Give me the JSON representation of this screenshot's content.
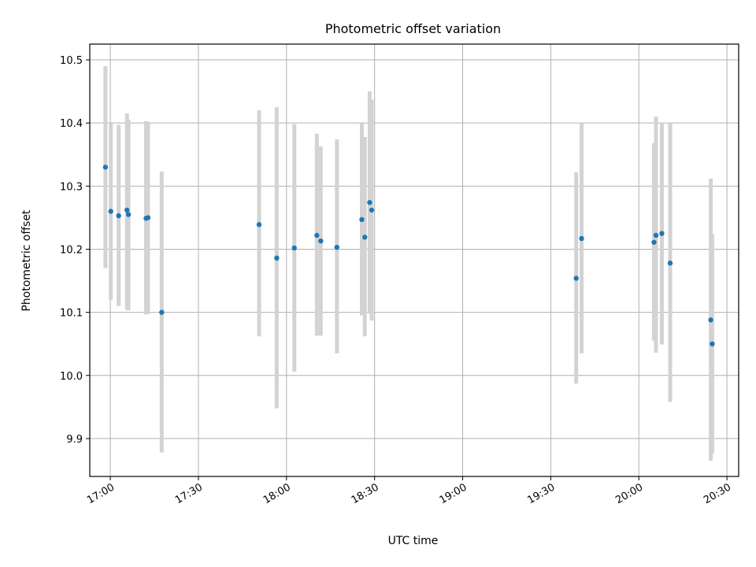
{
  "chart_data": {
    "type": "scatter",
    "title": "Photometric offset variation",
    "xlabel": "UTC time",
    "ylabel": "Photometric offset",
    "xlim": [
      "16:53",
      "20:34"
    ],
    "ylim": [
      9.84,
      10.525
    ],
    "x_ticks": [
      "17:00",
      "17:30",
      "18:00",
      "18:30",
      "19:00",
      "19:30",
      "20:00",
      "20:30"
    ],
    "y_ticks": [
      "9.9",
      "10.0",
      "10.1",
      "10.2",
      "10.3",
      "10.4",
      "10.5"
    ],
    "grid": true,
    "point_color": "#1f77b4",
    "errorbar_color": "#d3d3d3",
    "points": [
      {
        "t": "16:58:20",
        "y": 10.33,
        "lo": 10.17,
        "hi": 10.49
      },
      {
        "t": "17:00:10",
        "y": 10.26,
        "lo": 10.12,
        "hi": 10.4
      },
      {
        "t": "17:02:50",
        "y": 10.253,
        "lo": 10.11,
        "hi": 10.397
      },
      {
        "t": "17:05:40",
        "y": 10.262,
        "lo": 10.105,
        "hi": 10.415
      },
      {
        "t": "17:06:10",
        "y": 10.255,
        "lo": 10.103,
        "hi": 10.405
      },
      {
        "t": "17:12:10",
        "y": 10.249,
        "lo": 10.097,
        "hi": 10.403
      },
      {
        "t": "17:12:50",
        "y": 10.25,
        "lo": 10.097,
        "hi": 10.402
      },
      {
        "t": "17:17:30",
        "y": 10.1,
        "lo": 9.878,
        "hi": 10.323
      },
      {
        "t": "17:50:40",
        "y": 10.239,
        "lo": 10.062,
        "hi": 10.42
      },
      {
        "t": "17:56:40",
        "y": 10.186,
        "lo": 9.948,
        "hi": 10.425
      },
      {
        "t": "18:02:40",
        "y": 10.202,
        "lo": 10.006,
        "hi": 10.398
      },
      {
        "t": "18:10:20",
        "y": 10.222,
        "lo": 10.063,
        "hi": 10.383
      },
      {
        "t": "18:11:40",
        "y": 10.213,
        "lo": 10.063,
        "hi": 10.363
      },
      {
        "t": "18:17:10",
        "y": 10.203,
        "lo": 10.035,
        "hi": 10.374
      },
      {
        "t": "18:25:40",
        "y": 10.247,
        "lo": 10.095,
        "hi": 10.4
      },
      {
        "t": "18:26:40",
        "y": 10.219,
        "lo": 10.062,
        "hi": 10.378
      },
      {
        "t": "18:28:20",
        "y": 10.274,
        "lo": 10.098,
        "hi": 10.45
      },
      {
        "t": "18:29:00",
        "y": 10.262,
        "lo": 10.087,
        "hi": 10.437
      },
      {
        "t": "19:38:40",
        "y": 10.154,
        "lo": 9.987,
        "hi": 10.322
      },
      {
        "t": "19:40:30",
        "y": 10.217,
        "lo": 10.035,
        "hi": 10.4
      },
      {
        "t": "20:05:10",
        "y": 10.211,
        "lo": 10.055,
        "hi": 10.368
      },
      {
        "t": "20:05:50",
        "y": 10.222,
        "lo": 10.036,
        "hi": 10.41
      },
      {
        "t": "20:07:50",
        "y": 10.225,
        "lo": 10.049,
        "hi": 10.4
      },
      {
        "t": "20:10:40",
        "y": 10.178,
        "lo": 9.958,
        "hi": 10.4
      },
      {
        "t": "20:24:30",
        "y": 10.088,
        "lo": 9.865,
        "hi": 10.312
      },
      {
        "t": "20:25:00",
        "y": 10.05,
        "lo": 9.876,
        "hi": 10.224
      }
    ]
  }
}
